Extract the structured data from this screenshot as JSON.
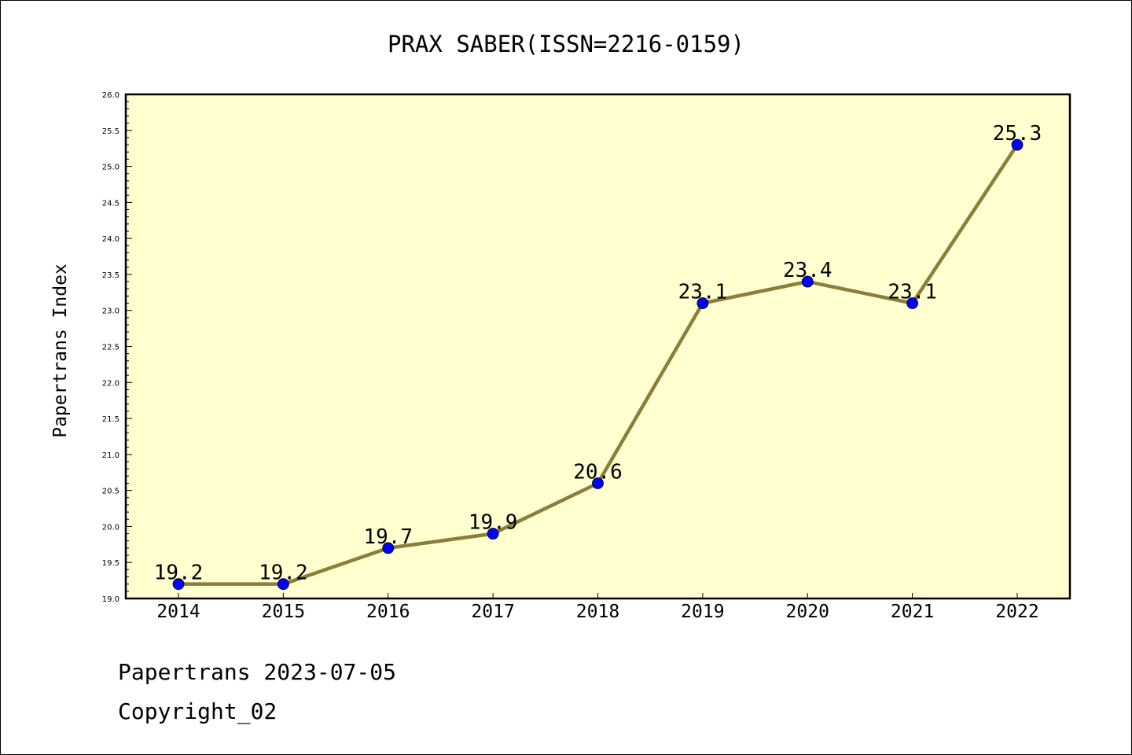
{
  "chart_data": {
    "type": "line",
    "title": "PRAX SABER(ISSN=2216-0159)",
    "xlabel": "",
    "ylabel": "Papertrans Index",
    "categories": [
      "2014",
      "2015",
      "2016",
      "2017",
      "2018",
      "2019",
      "2020",
      "2021",
      "2022"
    ],
    "values": [
      19.2,
      19.2,
      19.7,
      19.9,
      20.6,
      23.1,
      23.4,
      23.1,
      25.3
    ],
    "data_labels": [
      "19.2",
      "19.2",
      "19.7",
      "19.9",
      "20.6",
      "23.1",
      "23.4",
      "23.1",
      "25.3"
    ],
    "ylim": [
      19.0,
      26.0
    ],
    "yticks": [
      "19.0",
      "19.5",
      "20.0",
      "20.5",
      "21.0",
      "21.5",
      "22.0",
      "22.5",
      "23.0",
      "23.5",
      "24.0",
      "24.5",
      "25.0",
      "25.5",
      "26.0"
    ],
    "grid": false,
    "colors": {
      "plot_background": "#ffffd0",
      "line": "#8b7d3a",
      "marker": "#0000ff"
    }
  },
  "footer": {
    "line1": "Papertrans 2023-07-05",
    "line2": "Copyright_02"
  }
}
